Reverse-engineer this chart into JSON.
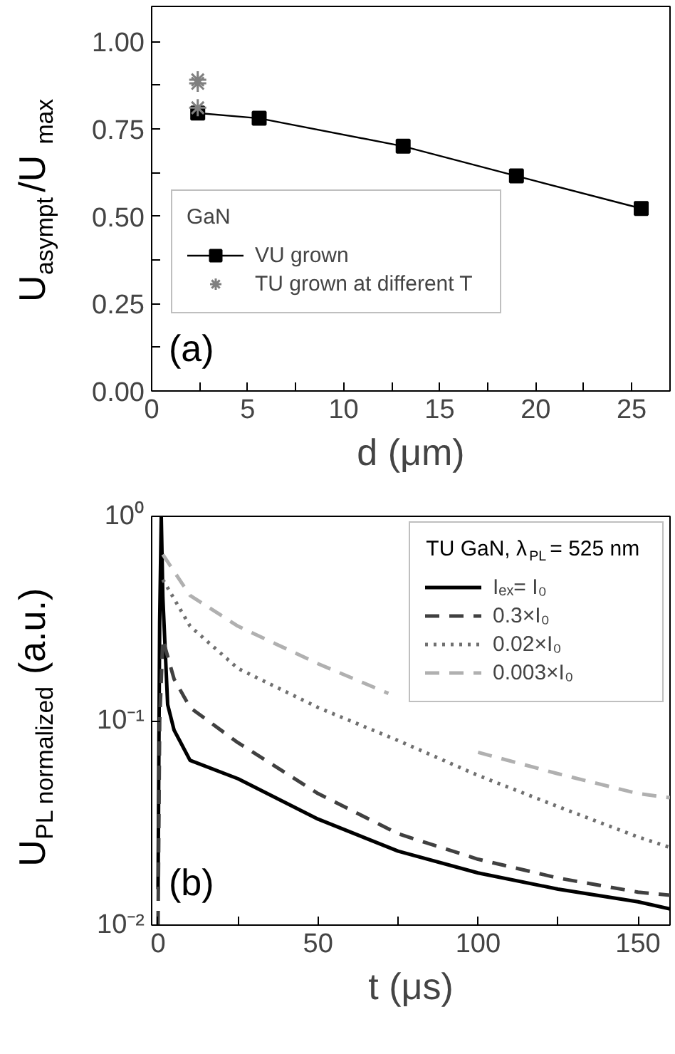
{
  "chart_data": [
    {
      "type": "line",
      "xlabel": "d (μm)",
      "ylabel": "U$_{asympt}$/U$_{max}$",
      "legend_title": "GaN",
      "legend": "left",
      "annotations": [
        "(a)"
      ],
      "xlim": [
        0,
        27
      ],
      "ylim": [
        0,
        1.1
      ],
      "xticks": [
        0,
        {
          "value": 2.5,
          "label": null
        },
        5,
        {
          "value": 7.5,
          "label": null
        },
        10,
        {
          "value": 12.5,
          "label": null
        },
        15,
        {
          "value": 17.5,
          "label": null
        },
        20,
        {
          "value": 22.5,
          "label": null
        },
        25
      ],
      "yticks": [
        {
          "value": 0,
          "label": "0.00"
        },
        {
          "value": 0.125,
          "label": null
        },
        {
          "value": 0.25,
          "label": "0.25"
        },
        {
          "value": 0.375,
          "label": null
        },
        {
          "value": 0.5,
          "label": "0.50"
        },
        {
          "value": 0.625,
          "label": null
        },
        {
          "value": 0.75,
          "label": "0.75"
        },
        {
          "value": 0.875,
          "label": null
        },
        {
          "value": 1.0,
          "label": "1.00"
        }
      ],
      "grid": false,
      "series": [
        {
          "name": "VU grown",
          "type": "line",
          "marker": "square",
          "color": "#000000",
          "x": [
            2.4,
            5.6,
            13.1,
            19.0,
            25.5
          ],
          "values": [
            0.795,
            0.78,
            0.7,
            0.615,
            0.522
          ]
        },
        {
          "name": "TU grown at different T",
          "type": "scatter",
          "marker": "cross",
          "color": "#808080",
          "x": [
            2.4,
            2.4,
            2.4
          ],
          "values": [
            0.89,
            0.88,
            0.81
          ]
        }
      ]
    },
    {
      "type": "line",
      "xlabel": "t (μs)",
      "ylabel": "U$_{PL normalized}$ (a.u.)",
      "legend_title": "TU GaN, λ$_{PL}$= 525 nm",
      "legend": "top right",
      "annotations": [
        "(b)"
      ],
      "xlim": [
        -2,
        160
      ],
      "ylim": [
        0.01,
        1
      ],
      "log": "y",
      "xticks": [
        0,
        {
          "value": 25,
          "label": null
        },
        50,
        {
          "value": 75,
          "label": null
        },
        100,
        {
          "value": 125,
          "label": null
        },
        150
      ],
      "yticks": [
        {
          "value": 0.01,
          "label": "10⁻²"
        },
        {
          "value": 0.1,
          "label": "10⁻¹"
        },
        {
          "value": 1,
          "label": "10⁰"
        }
      ],
      "grid": false,
      "series": [
        {
          "name": "Iₑₓ= I₀",
          "line_style": "solid",
          "color": "#000000",
          "x": [
            0,
            0.5,
            1,
            1.5,
            3,
            5,
            10,
            25,
            50,
            75,
            100,
            125,
            150,
            160
          ],
          "values": [
            0.015,
            0.3,
            1.0,
            0.4,
            0.12,
            0.09,
            0.064,
            0.052,
            0.033,
            0.023,
            0.018,
            0.015,
            0.013,
            0.012
          ]
        },
        {
          "name": "0.3×I₀",
          "line_style": "dashed",
          "color": "#404040",
          "x": [
            0,
            0.5,
            1.5,
            5,
            10,
            25,
            50,
            75,
            100,
            125,
            150,
            160
          ],
          "values": [
            0.01,
            0.1,
            0.25,
            0.16,
            0.116,
            0.078,
            0.044,
            0.028,
            0.021,
            0.017,
            0.0145,
            0.014
          ]
        },
        {
          "name": "0.02×I₀",
          "line_style": "dotted",
          "color": "#707070",
          "x": [
            1.5,
            10,
            25,
            50,
            75,
            100,
            125,
            150,
            160
          ],
          "values": [
            0.49,
            0.29,
            0.18,
            0.116,
            0.08,
            0.054,
            0.038,
            0.027,
            0.024
          ]
        },
        {
          "name": "0.003×I₀",
          "line_style": "dashed",
          "color": "#b0b0b0",
          "x": [
            1.5,
            10,
            25,
            50,
            72,
            85,
            100,
            125,
            150,
            160
          ],
          "values": [
            0.65,
            0.41,
            0.29,
            0.19,
            0.136,
            null,
            0.07,
            0.055,
            0.044,
            0.042
          ]
        }
      ]
    }
  ]
}
